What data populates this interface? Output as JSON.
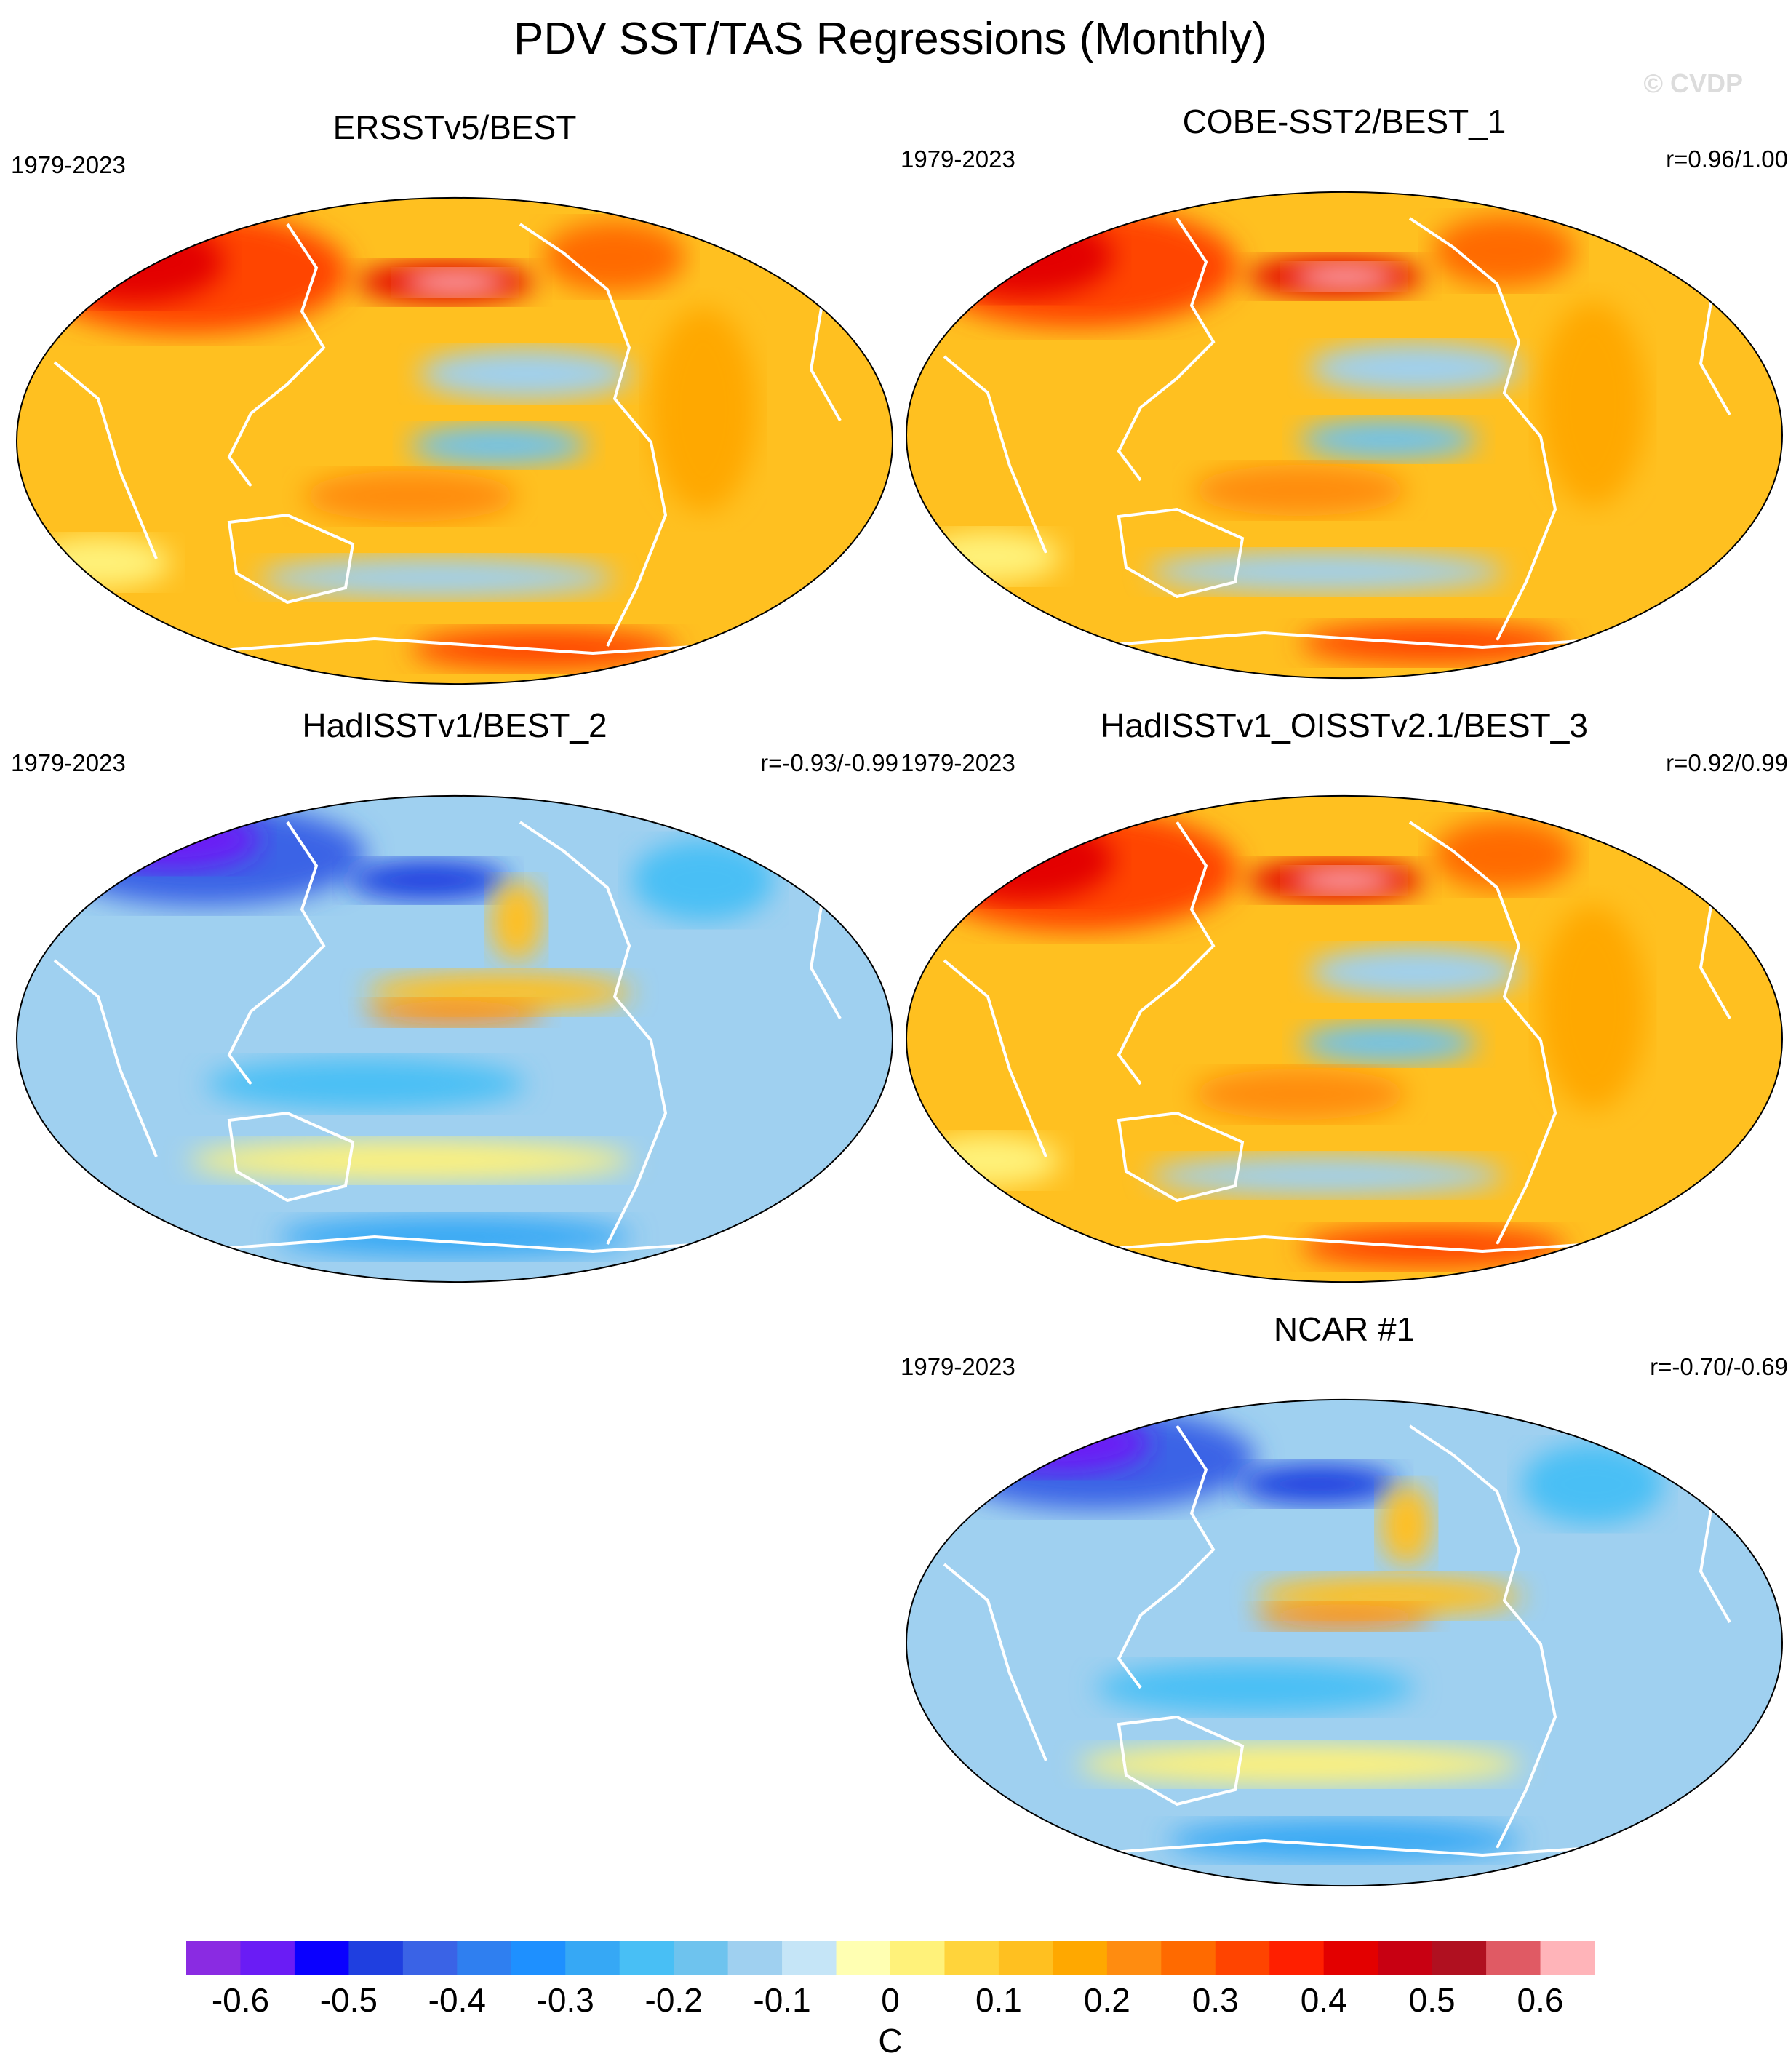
{
  "title": "PDV SST/TAS Regressions (Monthly)",
  "watermark": "© CVDP",
  "panels": [
    {
      "id": "p1",
      "title": "ERSSTv5/BEST",
      "period": "1979-2023",
      "corr": "",
      "pattern": "warm"
    },
    {
      "id": "p2",
      "title": "COBE-SST2/BEST_1",
      "period": "1979-2023",
      "corr": "r=0.96/1.00",
      "pattern": "warm"
    },
    {
      "id": "p3",
      "title": "HadISSTv1/BEST_2",
      "period": "1979-2023",
      "corr": "r=-0.93/-0.99",
      "pattern": "cold"
    },
    {
      "id": "p4",
      "title": "HadISSTv1_OISSTv2.1/BEST_3",
      "period": "1979-2023",
      "corr": "r=0.92/0.99",
      "pattern": "warm"
    },
    {
      "id": "p5",
      "title": "NCAR #1",
      "period": "1979-2023",
      "corr": "r=-0.70/-0.69",
      "pattern": "cold"
    }
  ],
  "colorbar": {
    "unit": "C",
    "tick_labels": [
      "-0.6",
      "-0.5",
      "-0.4",
      "-0.3",
      "-0.2",
      "-0.1",
      "0",
      "0.1",
      "0.2",
      "0.3",
      "0.4",
      "0.5",
      "0.6"
    ],
    "tick_values": [
      -0.6,
      -0.5,
      -0.4,
      -0.3,
      -0.2,
      -0.1,
      0,
      0.1,
      0.2,
      0.3,
      0.4,
      0.5,
      0.6
    ],
    "colors": [
      "#8a2be2",
      "#6a1cf5",
      "#0a00ff",
      "#1f3fe0",
      "#3a63e6",
      "#2f7ff0",
      "#1e90ff",
      "#36a8f5",
      "#48bff5",
      "#6ec3ee",
      "#9fd0f0",
      "#c5e5f7",
      "#ffffb2",
      "#fff27a",
      "#ffd43b",
      "#ffc020",
      "#ffa800",
      "#ff8c10",
      "#ff6a00",
      "#ff4400",
      "#ff1f00",
      "#e30000",
      "#c80012",
      "#b01020",
      "#e05a64",
      "#ffb4b9"
    ]
  }
}
